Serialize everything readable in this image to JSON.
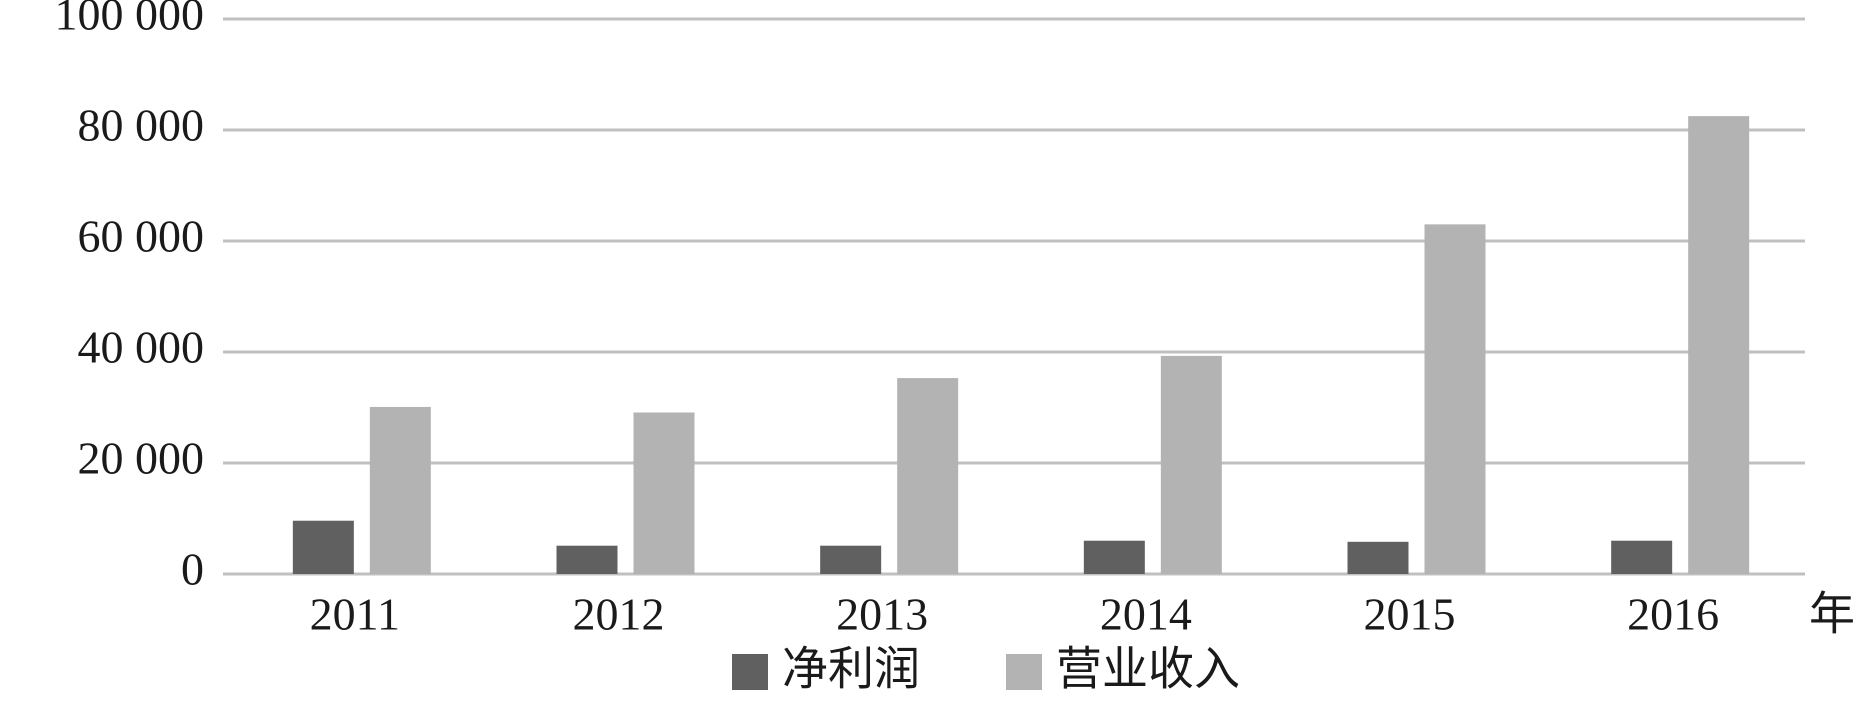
{
  "chart_data": {
    "type": "bar",
    "x_label": "年",
    "categories": [
      "2011",
      "2012",
      "2013",
      "2014",
      "2015",
      "2016"
    ],
    "series": [
      {
        "name": "净利润",
        "color": "#606060",
        "values": [
          9600,
          5100,
          5100,
          6000,
          5800,
          6000
        ]
      },
      {
        "name": "营业收入",
        "color": "#b3b3b3",
        "values": [
          30100,
          29100,
          35300,
          39300,
          63000,
          82500
        ]
      }
    ],
    "ylim": [
      0,
      100000
    ],
    "yticks": [
      0,
      {
        "value": 20000,
        "label": "20 000"
      },
      {
        "value": 40000,
        "label": "40 000"
      },
      {
        "value": 60000,
        "label": "60 000"
      },
      {
        "value": 80000,
        "label": "80 000"
      },
      {
        "value": 100000,
        "label": "100 000"
      }
    ],
    "grid": true,
    "legend": "bottom"
  }
}
